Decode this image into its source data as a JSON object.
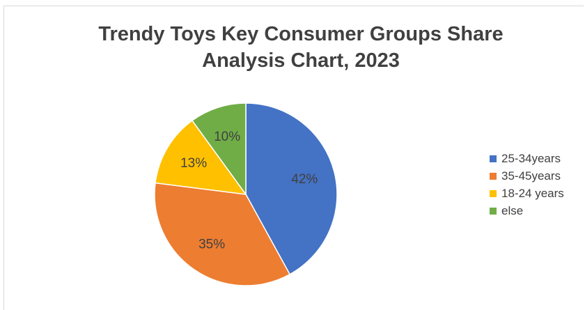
{
  "chart_data": {
    "type": "pie",
    "title": "Trendy Toys Key Consumer Groups Share Analysis Chart, 2023",
    "title_lines": [
      "Trendy Toys Key Consumer Groups Share",
      "Analysis Chart, 2023"
    ],
    "categories": [
      "25-34years",
      "35-45years",
      "18-24 years",
      "else"
    ],
    "values": [
      42,
      35,
      13,
      10
    ],
    "labels": [
      "42%",
      "35%",
      "13%",
      "10%"
    ],
    "colors": [
      "#4472c4",
      "#ed7d31",
      "#ffc000",
      "#70ad47"
    ],
    "legend_position": "right",
    "start_angle_deg": 0,
    "direction": "clockwise"
  }
}
